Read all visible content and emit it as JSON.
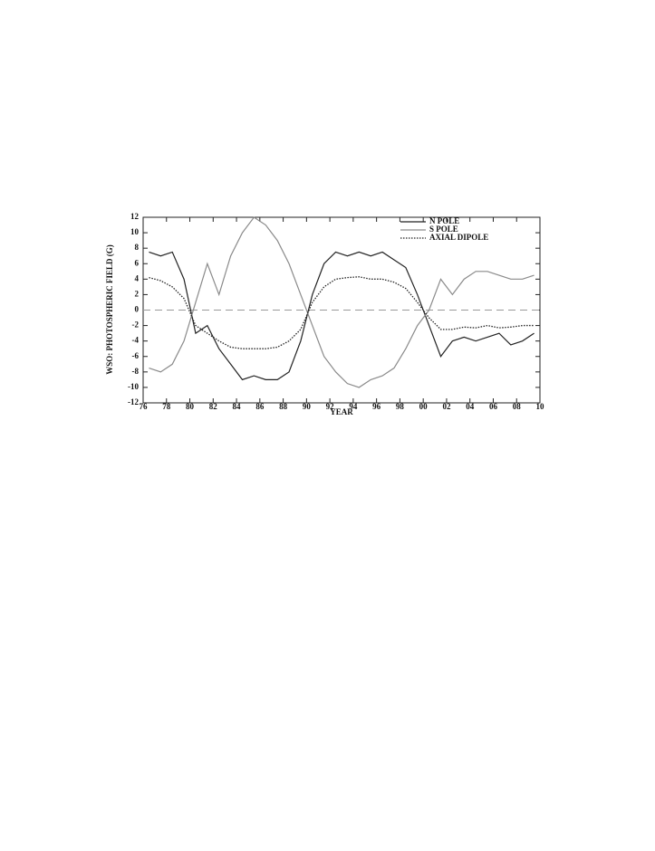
{
  "chart_data": {
    "type": "line",
    "ylabel": "WSO: PHOTOSPHERIC FIELD (G)",
    "xlabel": "YEAR",
    "x": [
      1976.5,
      1977.5,
      1978.5,
      1979.5,
      1980.5,
      1981.5,
      1982.5,
      1983.5,
      1984.5,
      1985.5,
      1986.5,
      1987.5,
      1988.5,
      1989.5,
      1990.5,
      1991.5,
      1992.5,
      1993.5,
      1994.5,
      1995.5,
      1996.5,
      1997.5,
      1998.5,
      1999.5,
      2000.5,
      2001.5,
      2002.5,
      2003.5,
      2004.5,
      2005.5,
      2006.5,
      2007.5,
      2008.5,
      2009.5
    ],
    "series": [
      {
        "name": "N POLE",
        "color": "#222222",
        "style": "solid",
        "values": [
          7.5,
          7,
          7.5,
          4,
          -3,
          -2,
          -5,
          -7,
          -9,
          -8.5,
          -9,
          -9,
          -8,
          -4,
          2,
          6,
          7.5,
          7,
          7.5,
          7,
          7.5,
          6.5,
          5.5,
          2,
          -2,
          -6,
          -4,
          -3.5,
          -4,
          -3.5,
          -3,
          -4.5,
          -4,
          -3
        ]
      },
      {
        "name": "S POLE",
        "color": "#8a8a8a",
        "style": "solid",
        "values": [
          -7.5,
          -8,
          -7,
          -4,
          1,
          6,
          2,
          7,
          10,
          12,
          11,
          9,
          6,
          2,
          -2,
          -6,
          -8,
          -9.5,
          -10,
          -9,
          -8.5,
          -7.5,
          -5,
          -2,
          0,
          4,
          2,
          4,
          5,
          5,
          4.5,
          4,
          4,
          4.5
        ]
      },
      {
        "name": "AXIAL DIPOLE",
        "color": "#222222",
        "style": "dotted",
        "values": [
          4.2,
          3.8,
          3,
          1.5,
          -2,
          -3,
          -4,
          -4.8,
          -5,
          -5,
          -5,
          -4.8,
          -4,
          -2.5,
          1,
          3,
          4,
          4.2,
          4.3,
          4,
          4,
          3.6,
          2.8,
          1,
          -1,
          -2.5,
          -2.5,
          -2.2,
          -2.3,
          -2,
          -2.3,
          -2.2,
          -2,
          -2
        ]
      }
    ],
    "xlim": [
      1976,
      2010
    ],
    "xticks": [
      {
        "value": 1976,
        "label": "76"
      },
      {
        "value": 1978,
        "label": "78"
      },
      {
        "value": 1980,
        "label": "80"
      },
      {
        "value": 1982,
        "label": "82"
      },
      {
        "value": 1984,
        "label": "84"
      },
      {
        "value": 1986,
        "label": "86"
      },
      {
        "value": 1988,
        "label": "88"
      },
      {
        "value": 1990,
        "label": "90"
      },
      {
        "value": 1992,
        "label": "92"
      },
      {
        "value": 1994,
        "label": "94"
      },
      {
        "value": 1996,
        "label": "96"
      },
      {
        "value": 1998,
        "label": "98"
      },
      {
        "value": 2000,
        "label": "00"
      },
      {
        "value": 2002,
        "label": "02"
      },
      {
        "value": 2004,
        "label": "04"
      },
      {
        "value": 2006,
        "label": "06"
      },
      {
        "value": 2008,
        "label": "08"
      },
      {
        "value": 2010,
        "label": "10"
      }
    ],
    "ylim": [
      -12,
      12
    ],
    "yticks": [
      -12,
      -10,
      -8,
      -6,
      -4,
      -2,
      0,
      2,
      4,
      6,
      8,
      10,
      12
    ],
    "grid": false,
    "legend": "upper right"
  }
}
